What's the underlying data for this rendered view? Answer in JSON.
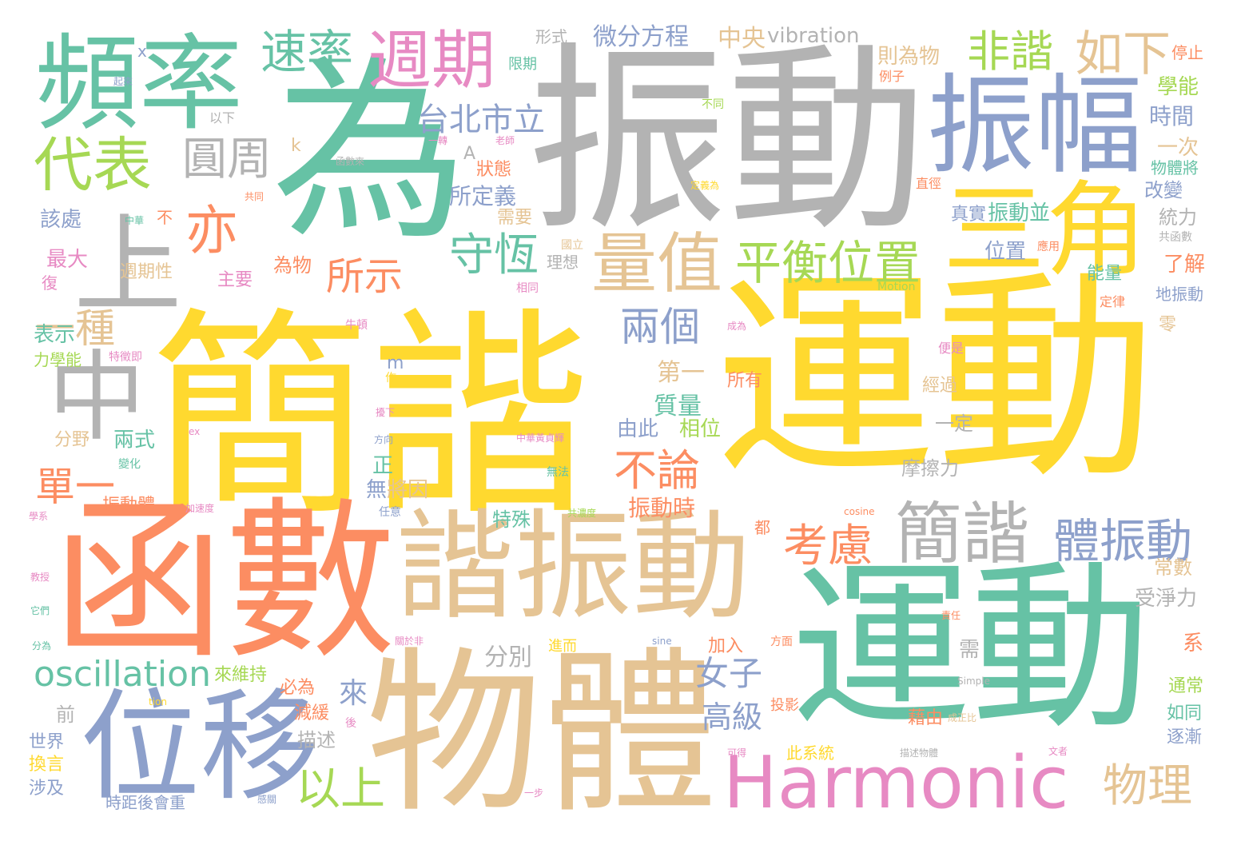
{
  "palette": {
    "yellow": "#ffd92f",
    "gray": "#b3b3b3",
    "green": "#66c2a5",
    "orange": "#fc8d62",
    "blue": "#8da0cb",
    "pink": "#e78ac3",
    "lime": "#a6d854",
    "tan": "#e5c494"
  },
  "words": [
    {
      "text": "簡諧",
      "color": "yellow"
    },
    {
      "text": "運動",
      "color": "yellow"
    },
    {
      "text": "振動",
      "color": "gray"
    },
    {
      "text": "為",
      "color": "green"
    },
    {
      "text": "函數",
      "color": "orange"
    },
    {
      "text": "物體",
      "color": "tan"
    },
    {
      "text": "運動",
      "color": "green"
    },
    {
      "text": "諧振動",
      "color": "tan"
    },
    {
      "text": "頻率",
      "color": "green"
    },
    {
      "text": "振幅",
      "color": "blue"
    },
    {
      "text": "三角",
      "color": "yellow"
    },
    {
      "text": "位移",
      "color": "blue"
    },
    {
      "text": "Harmonic",
      "color": "pink"
    },
    {
      "text": "上",
      "color": "gray"
    },
    {
      "text": "中",
      "color": "gray"
    },
    {
      "text": "週期",
      "color": "pink"
    },
    {
      "text": "代表",
      "color": "lime"
    },
    {
      "text": "量值",
      "color": "tan"
    },
    {
      "text": "平衡位置",
      "color": "lime"
    },
    {
      "text": "簡諧",
      "color": "gray"
    },
    {
      "text": "體振動",
      "color": "blue"
    },
    {
      "text": "速率",
      "color": "green"
    },
    {
      "text": "非諧",
      "color": "lime"
    },
    {
      "text": "如下",
      "color": "tan"
    },
    {
      "text": "圓周",
      "color": "gray"
    },
    {
      "text": "亦",
      "color": "orange"
    },
    {
      "text": "守恆",
      "color": "green"
    },
    {
      "text": "台北市立",
      "color": "blue"
    },
    {
      "text": "考慮",
      "color": "orange"
    },
    {
      "text": "兩個",
      "color": "blue"
    },
    {
      "text": "不論",
      "color": "orange"
    },
    {
      "text": "所示",
      "color": "orange"
    },
    {
      "text": "一種",
      "color": "tan"
    },
    {
      "text": "單一",
      "color": "orange"
    },
    {
      "text": "oscillation",
      "color": "green"
    },
    {
      "text": "以上",
      "color": "lime"
    },
    {
      "text": "物理",
      "color": "tan"
    },
    {
      "text": "女子",
      "color": "blue"
    },
    {
      "text": "高級",
      "color": "blue"
    },
    {
      "text": "微分方程",
      "color": "blue"
    },
    {
      "text": "中央",
      "color": "tan"
    },
    {
      "text": "vibration",
      "color": "gray"
    },
    {
      "text": "形式",
      "color": "gray"
    },
    {
      "text": "則為物",
      "color": "tan"
    },
    {
      "text": "停止",
      "color": "orange"
    },
    {
      "text": "學能",
      "color": "lime"
    },
    {
      "text": "時間",
      "color": "blue"
    },
    {
      "text": "一次",
      "color": "tan"
    },
    {
      "text": "物體將",
      "color": "green"
    },
    {
      "text": "改變",
      "color": "blue"
    },
    {
      "text": "統力",
      "color": "gray"
    },
    {
      "text": "了解",
      "color": "orange"
    },
    {
      "text": "能量",
      "color": "green"
    },
    {
      "text": "地振動",
      "color": "blue"
    },
    {
      "text": "所定義",
      "color": "blue"
    },
    {
      "text": "狀態",
      "color": "orange"
    },
    {
      "text": "需要",
      "color": "tan"
    },
    {
      "text": "真實",
      "color": "blue"
    },
    {
      "text": "振動並",
      "color": "green"
    },
    {
      "text": "位置",
      "color": "blue"
    },
    {
      "text": "該處",
      "color": "blue"
    },
    {
      "text": "最大",
      "color": "pink"
    },
    {
      "text": "週期性",
      "color": "tan"
    },
    {
      "text": "主要",
      "color": "pink"
    },
    {
      "text": "為物",
      "color": "orange"
    },
    {
      "text": "表示",
      "color": "green"
    },
    {
      "text": "力學能",
      "color": "lime"
    },
    {
      "text": "第一",
      "color": "tan"
    },
    {
      "text": "所有",
      "color": "orange"
    },
    {
      "text": "質量",
      "color": "green"
    },
    {
      "text": "由此",
      "color": "blue"
    },
    {
      "text": "相位",
      "color": "lime"
    },
    {
      "text": "經過",
      "color": "tan"
    },
    {
      "text": "一定",
      "color": "gray"
    },
    {
      "text": "分野",
      "color": "tan"
    },
    {
      "text": "兩式",
      "color": "green"
    },
    {
      "text": "摩擦力",
      "color": "gray"
    },
    {
      "text": "特殊",
      "color": "green"
    },
    {
      "text": "振動時",
      "color": "orange"
    },
    {
      "text": "振動體",
      "color": "orange"
    },
    {
      "text": "將因",
      "color": "tan"
    },
    {
      "text": "無",
      "color": "blue"
    },
    {
      "text": "正",
      "color": "green"
    },
    {
      "text": "常數",
      "color": "tan"
    },
    {
      "text": "受淨力",
      "color": "gray"
    },
    {
      "text": "分別",
      "color": "gray"
    },
    {
      "text": "加入",
      "color": "orange"
    },
    {
      "text": "需",
      "color": "gray"
    },
    {
      "text": "系",
      "color": "orange"
    },
    {
      "text": "通常",
      "color": "lime"
    },
    {
      "text": "如同",
      "color": "green"
    },
    {
      "text": "逐漸",
      "color": "blue"
    },
    {
      "text": "來",
      "color": "blue"
    },
    {
      "text": "來維持",
      "color": "lime"
    },
    {
      "text": "必為",
      "color": "orange"
    },
    {
      "text": "減緩",
      "color": "orange"
    },
    {
      "text": "描述",
      "color": "gray"
    },
    {
      "text": "藉由",
      "color": "orange"
    },
    {
      "text": "此系統",
      "color": "yellow"
    },
    {
      "text": "投影",
      "color": "orange"
    },
    {
      "text": "前",
      "color": "gray"
    },
    {
      "text": "世界",
      "color": "blue"
    },
    {
      "text": "換言",
      "color": "yellow"
    },
    {
      "text": "涉及",
      "color": "blue"
    },
    {
      "text": "時距後會重",
      "color": "blue"
    },
    {
      "text": "限期",
      "color": "green"
    },
    {
      "text": "例子",
      "color": "orange"
    },
    {
      "text": "不同",
      "color": "lime"
    },
    {
      "text": "以下",
      "color": "gray"
    },
    {
      "text": "起來",
      "color": "blue"
    },
    {
      "text": "復",
      "color": "pink"
    },
    {
      "text": "不",
      "color": "orange"
    },
    {
      "text": "中華",
      "color": "green"
    },
    {
      "text": "共同",
      "color": "orange"
    },
    {
      "text": "一轉",
      "color": "pink"
    },
    {
      "text": "老師",
      "color": "pink"
    },
    {
      "text": "函數來",
      "color": "gray"
    },
    {
      "text": "直徑",
      "color": "orange"
    },
    {
      "text": "定義為",
      "color": "yellow"
    },
    {
      "text": "國立",
      "color": "tan"
    },
    {
      "text": "理想",
      "color": "gray"
    },
    {
      "text": "相同",
      "color": "pink"
    },
    {
      "text": "應用",
      "color": "orange"
    },
    {
      "text": "共函數",
      "color": "gray"
    },
    {
      "text": "定律",
      "color": "orange"
    },
    {
      "text": "便是",
      "color": "pink"
    },
    {
      "text": "零",
      "color": "tan"
    },
    {
      "text": "Motion",
      "color": "lime"
    },
    {
      "text": "成為",
      "color": "pink"
    },
    {
      "text": "牛頓",
      "color": "pink"
    },
    {
      "text": "特徵即",
      "color": "pink"
    },
    {
      "text": "作",
      "color": "yellow"
    },
    {
      "text": "擾下",
      "color": "pink"
    },
    {
      "text": "方向",
      "color": "blue"
    },
    {
      "text": "中華黃貞輝",
      "color": "pink"
    },
    {
      "text": "無法",
      "color": "green"
    },
    {
      "text": "共濃度",
      "color": "lime"
    },
    {
      "text": "任意",
      "color": "blue"
    },
    {
      "text": "都",
      "color": "orange"
    },
    {
      "text": "加速度",
      "color": "pink"
    },
    {
      "text": "變化",
      "color": "green"
    },
    {
      "text": "學系",
      "color": "pink"
    },
    {
      "text": "教授",
      "color": "pink"
    },
    {
      "text": "它們",
      "color": "green"
    },
    {
      "text": "分為",
      "color": "green"
    },
    {
      "text": "關於非",
      "color": "pink"
    },
    {
      "text": "sine",
      "color": "blue"
    },
    {
      "text": "方面",
      "color": "orange"
    },
    {
      "text": "進而",
      "color": "yellow"
    },
    {
      "text": "cosine",
      "color": "orange"
    },
    {
      "text": "責任",
      "color": "orange"
    },
    {
      "text": "Simple",
      "color": "gray"
    },
    {
      "text": "成正比",
      "color": "tan"
    },
    {
      "text": "文者",
      "color": "pink"
    },
    {
      "text": "描述物體",
      "color": "gray"
    },
    {
      "text": "可得",
      "color": "pink"
    },
    {
      "text": "感關",
      "color": "blue"
    },
    {
      "text": "一步",
      "color": "pink"
    },
    {
      "text": "tion",
      "color": "yellow"
    },
    {
      "text": "後",
      "color": "pink"
    },
    {
      "text": "x",
      "color": "blue"
    },
    {
      "text": "k",
      "color": "tan"
    },
    {
      "text": "A",
      "color": "gray"
    },
    {
      "text": "m",
      "color": "blue"
    },
    {
      "text": "ex",
      "color": "pink"
    }
  ]
}
